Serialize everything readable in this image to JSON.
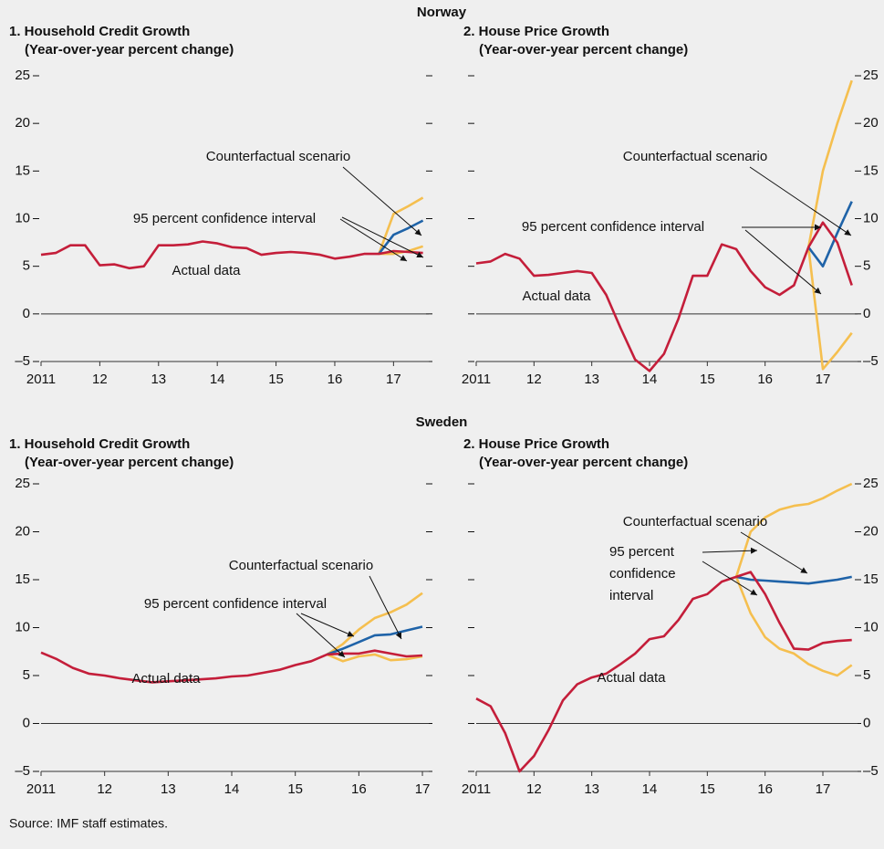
{
  "headers": [
    "Norway",
    "Sweden"
  ],
  "source": "Source: IMF staff estimates.",
  "chart_data": [
    {
      "type": "line",
      "title": "1. Household Credit Growth",
      "subtitle": "(Year-over-year percent change)",
      "y_label_side": "left",
      "xlim": [
        2011,
        2017.6
      ],
      "ylim": [
        -5,
        25
      ],
      "xticks": [
        {
          "value": 2011,
          "label": "2011"
        },
        {
          "value": 2012,
          "label": "12"
        },
        {
          "value": 2013,
          "label": "13"
        },
        {
          "value": 2014,
          "label": "14"
        },
        {
          "value": 2015,
          "label": "15"
        },
        {
          "value": 2016,
          "label": "16"
        },
        {
          "value": 2017,
          "label": "17"
        }
      ],
      "yticks": [
        {
          "value": -5,
          "label": "–5"
        },
        0,
        5,
        10,
        15,
        20,
        25
      ],
      "x": [
        2011,
        2011.25,
        2011.5,
        2011.75,
        2012,
        2012.25,
        2012.5,
        2012.75,
        2013,
        2013.25,
        2013.5,
        2013.75,
        2014,
        2014.25,
        2014.5,
        2014.75,
        2015,
        2015.25,
        2015.5,
        2015.75,
        2016,
        2016.25,
        2016.5,
        2016.75,
        2017,
        2017.25,
        2017.5
      ],
      "series": [
        {
          "name": "Actual data",
          "color": "#c41e3a",
          "values": [
            6.2,
            6.4,
            7.2,
            7.2,
            5.1,
            5.2,
            4.8,
            5.0,
            7.2,
            7.2,
            7.3,
            7.6,
            7.4,
            7.0,
            6.9,
            6.2,
            6.4,
            6.5,
            6.4,
            6.2,
            5.8,
            6.0,
            6.3,
            6.3,
            6.6,
            6.5,
            6.4
          ]
        },
        {
          "name": "Counterfactual scenario",
          "color": "#1f63a8",
          "values": [
            null,
            null,
            null,
            null,
            null,
            null,
            null,
            null,
            null,
            null,
            null,
            null,
            null,
            null,
            null,
            null,
            null,
            null,
            null,
            null,
            null,
            null,
            null,
            6.3,
            8.3,
            9.0,
            9.8
          ]
        },
        {
          "name": "95 percent confidence interval",
          "color": "#f5bf4f",
          "lower": [
            null,
            null,
            null,
            null,
            null,
            null,
            null,
            null,
            null,
            null,
            null,
            null,
            null,
            null,
            null,
            null,
            null,
            null,
            null,
            null,
            null,
            null,
            null,
            6.3,
            6.3,
            6.6,
            7.1
          ],
          "upper": [
            null,
            null,
            null,
            null,
            null,
            null,
            null,
            null,
            null,
            null,
            null,
            null,
            null,
            null,
            null,
            null,
            null,
            null,
            null,
            null,
            null,
            null,
            null,
            6.3,
            10.5,
            11.3,
            12.2
          ]
        }
      ]
    },
    {
      "type": "line",
      "title": "2. House Price Growth",
      "subtitle": "(Year-over-year percent change)",
      "y_label_side": "right",
      "xlim": [
        2011,
        2017.6
      ],
      "ylim": [
        -5,
        25
      ],
      "xticks": [
        {
          "value": 2011,
          "label": "2011"
        },
        {
          "value": 2012,
          "label": "12"
        },
        {
          "value": 2013,
          "label": "13"
        },
        {
          "value": 2014,
          "label": "14"
        },
        {
          "value": 2015,
          "label": "15"
        },
        {
          "value": 2016,
          "label": "16"
        },
        {
          "value": 2017,
          "label": "17"
        }
      ],
      "yticks": [
        {
          "value": -5,
          "label": "–5"
        },
        0,
        5,
        10,
        15,
        20,
        25
      ],
      "x": [
        2011,
        2011.25,
        2011.5,
        2011.75,
        2012,
        2012.25,
        2012.5,
        2012.75,
        2013,
        2013.25,
        2013.5,
        2013.75,
        2014,
        2014.25,
        2014.5,
        2014.75,
        2015,
        2015.25,
        2015.5,
        2015.75,
        2016,
        2016.25,
        2016.5,
        2016.75,
        2017,
        2017.25,
        2017.5
      ],
      "series": [
        {
          "name": "Actual data",
          "color": "#c41e3a",
          "values": [
            5.3,
            5.5,
            6.3,
            5.8,
            4.0,
            4.1,
            4.3,
            4.5,
            4.3,
            2.0,
            -1.5,
            -4.8,
            -6.0,
            -4.2,
            -0.5,
            4.0,
            4.0,
            7.3,
            6.8,
            4.5,
            2.8,
            2.0,
            3.0,
            7.0,
            9.6,
            7.5,
            3.0
          ]
        },
        {
          "name": "Counterfactual scenario",
          "color": "#1f63a8",
          "values": [
            null,
            null,
            null,
            null,
            null,
            null,
            null,
            null,
            null,
            null,
            null,
            null,
            null,
            null,
            null,
            null,
            null,
            null,
            null,
            null,
            null,
            null,
            null,
            7.0,
            5.0,
            8.5,
            11.8
          ]
        },
        {
          "name": "95 percent confidence interval",
          "color": "#f5bf4f",
          "lower": [
            null,
            null,
            null,
            null,
            null,
            null,
            null,
            null,
            null,
            null,
            null,
            null,
            null,
            null,
            null,
            null,
            null,
            null,
            null,
            null,
            null,
            null,
            null,
            7.0,
            -5.8,
            -4.0,
            -2.0
          ],
          "upper": [
            null,
            null,
            null,
            null,
            null,
            null,
            null,
            null,
            null,
            null,
            null,
            null,
            null,
            null,
            null,
            null,
            null,
            null,
            null,
            null,
            null,
            null,
            null,
            7.0,
            15.0,
            20.0,
            24.5
          ]
        }
      ]
    },
    {
      "type": "line",
      "title": "1. Household Credit Growth",
      "subtitle": "(Year-over-year percent change)",
      "y_label_side": "left",
      "xlim": [
        2011,
        2017.1
      ],
      "ylim": [
        -5,
        25
      ],
      "xticks": [
        {
          "value": 2011,
          "label": "2011"
        },
        {
          "value": 2012,
          "label": "12"
        },
        {
          "value": 2013,
          "label": "13"
        },
        {
          "value": 2014,
          "label": "14"
        },
        {
          "value": 2015,
          "label": "15"
        },
        {
          "value": 2016,
          "label": "16"
        },
        {
          "value": 2017,
          "label": "17"
        }
      ],
      "yticks": [
        {
          "value": -5,
          "label": "–5"
        },
        0,
        5,
        10,
        15,
        20,
        25
      ],
      "x": [
        2011,
        2011.25,
        2011.5,
        2011.75,
        2012,
        2012.25,
        2012.5,
        2012.75,
        2013,
        2013.25,
        2013.5,
        2013.75,
        2014,
        2014.25,
        2014.5,
        2014.75,
        2015,
        2015.25,
        2015.5,
        2015.75,
        2016,
        2016.25,
        2016.5,
        2016.75,
        2017
      ],
      "series": [
        {
          "name": "Actual data",
          "color": "#c41e3a",
          "values": [
            7.4,
            6.7,
            5.8,
            5.2,
            5.0,
            4.7,
            4.5,
            4.3,
            4.4,
            4.5,
            4.6,
            4.7,
            4.9,
            5.0,
            5.3,
            5.6,
            6.1,
            6.5,
            7.2,
            7.3,
            7.3,
            7.6,
            7.3,
            7.0,
            7.1
          ]
        },
        {
          "name": "Counterfactual scenario",
          "color": "#1f63a8",
          "values": [
            null,
            null,
            null,
            null,
            null,
            null,
            null,
            null,
            null,
            null,
            null,
            null,
            null,
            null,
            null,
            null,
            null,
            null,
            7.2,
            7.8,
            8.5,
            9.2,
            9.3,
            9.7,
            10.1
          ]
        },
        {
          "name": "95 percent confidence interval",
          "color": "#f5bf4f",
          "lower": [
            null,
            null,
            null,
            null,
            null,
            null,
            null,
            null,
            null,
            null,
            null,
            null,
            null,
            null,
            null,
            null,
            null,
            null,
            7.2,
            6.5,
            7.0,
            7.2,
            6.6,
            6.7,
            7.0
          ],
          "upper": [
            null,
            null,
            null,
            null,
            null,
            null,
            null,
            null,
            null,
            null,
            null,
            null,
            null,
            null,
            null,
            null,
            null,
            null,
            7.2,
            8.3,
            9.8,
            11.0,
            11.6,
            12.4,
            13.6
          ]
        }
      ]
    },
    {
      "type": "line",
      "title": "2. House Price Growth",
      "subtitle": "(Year-over-year percent change)",
      "y_label_side": "right",
      "xlim": [
        2011,
        2017.6
      ],
      "ylim": [
        -5,
        25
      ],
      "xticks": [
        {
          "value": 2011,
          "label": "2011"
        },
        {
          "value": 2012,
          "label": "12"
        },
        {
          "value": 2013,
          "label": "13"
        },
        {
          "value": 2014,
          "label": "14"
        },
        {
          "value": 2015,
          "label": "15"
        },
        {
          "value": 2016,
          "label": "16"
        },
        {
          "value": 2017,
          "label": "17"
        }
      ],
      "yticks": [
        {
          "value": -5,
          "label": "–5"
        },
        0,
        5,
        10,
        15,
        20,
        25
      ],
      "x": [
        2011,
        2011.25,
        2011.5,
        2011.75,
        2012,
        2012.25,
        2012.5,
        2012.75,
        2013,
        2013.25,
        2013.5,
        2013.75,
        2014,
        2014.25,
        2014.5,
        2014.75,
        2015,
        2015.25,
        2015.5,
        2015.75,
        2016,
        2016.25,
        2016.5,
        2016.75,
        2017,
        2017.25,
        2017.5
      ],
      "series": [
        {
          "name": "Actual data",
          "color": "#c41e3a",
          "values": [
            2.6,
            1.8,
            -1.0,
            -5.0,
            -3.4,
            -0.7,
            2.4,
            4.1,
            4.8,
            5.2,
            6.2,
            7.3,
            8.8,
            9.1,
            10.8,
            13.0,
            13.5,
            14.8,
            15.3,
            15.8,
            13.5,
            10.5,
            7.8,
            7.7,
            8.4,
            8.6,
            8.7
          ]
        },
        {
          "name": "Counterfactual scenario",
          "color": "#1f63a8",
          "values": [
            null,
            null,
            null,
            null,
            null,
            null,
            null,
            null,
            null,
            null,
            null,
            null,
            null,
            null,
            null,
            null,
            null,
            null,
            15.3,
            15.0,
            14.9,
            14.8,
            14.7,
            14.6,
            14.8,
            15.0,
            15.3
          ]
        },
        {
          "name": "95 percent confidence interval",
          "color": "#f5bf4f",
          "lower": [
            null,
            null,
            null,
            null,
            null,
            null,
            null,
            null,
            null,
            null,
            null,
            null,
            null,
            null,
            null,
            null,
            null,
            null,
            15.3,
            11.5,
            9.0,
            7.8,
            7.3,
            6.2,
            5.5,
            5.0,
            6.1
          ],
          "upper": [
            null,
            null,
            null,
            null,
            null,
            null,
            null,
            null,
            null,
            null,
            null,
            null,
            null,
            null,
            null,
            null,
            null,
            null,
            15.3,
            20.0,
            21.5,
            22.3,
            22.7,
            22.9,
            23.5,
            24.3,
            25.0
          ]
        }
      ]
    }
  ]
}
